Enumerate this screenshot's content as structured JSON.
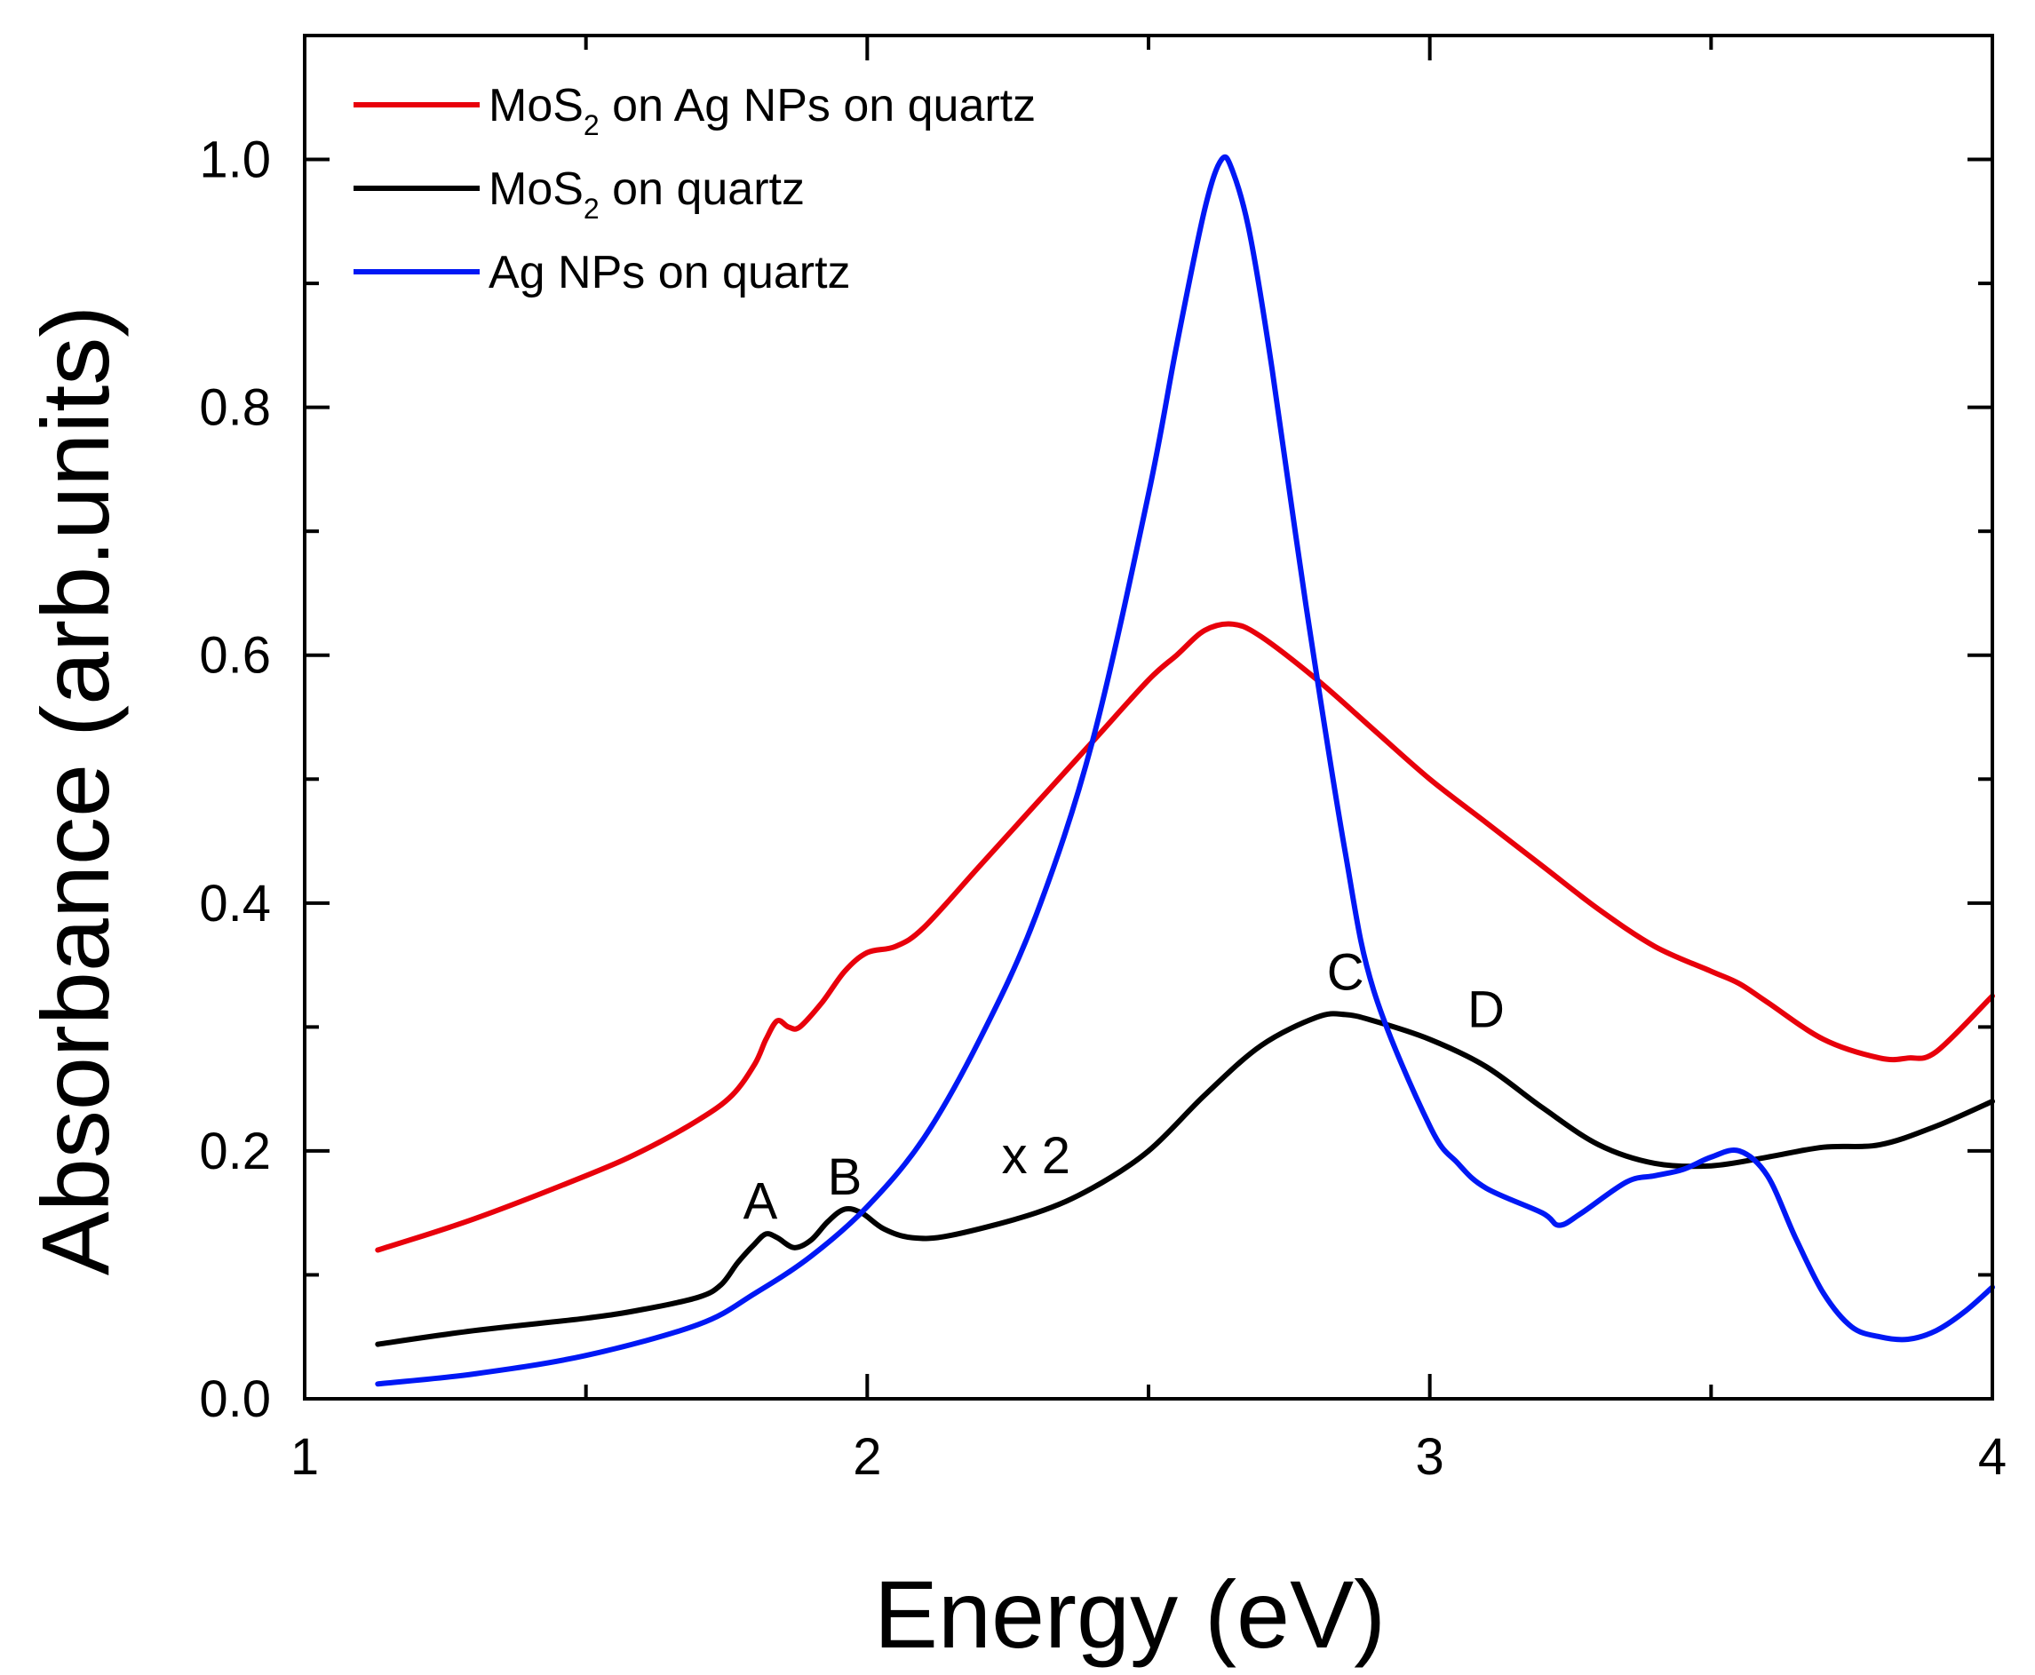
{
  "chart_data": {
    "type": "line",
    "xlabel": "Energy (eV)",
    "ylabel": "Absorbance (arb.units)",
    "xlim": [
      1,
      4
    ],
    "ylim": [
      0,
      1.1
    ],
    "x_ticks": [
      1,
      2,
      3,
      4
    ],
    "x_tick_labels": [
      "1",
      "2",
      "3",
      "4"
    ],
    "y_ticks": [
      0.0,
      0.2,
      0.4,
      0.6,
      0.8,
      1.0
    ],
    "y_tick_labels": [
      "0.0",
      "0.2",
      "0.4",
      "0.6",
      "0.8",
      "1.0"
    ],
    "legend_position": "top-left",
    "series": [
      {
        "name": "MoS2 on Ag NPs on quartz",
        "legend_main": "MoS",
        "legend_sub": "2",
        "legend_rest": " on Ag NPs on quartz",
        "color": "#e8000b",
        "x": [
          1.13,
          1.3,
          1.5,
          1.6,
          1.7,
          1.76,
          1.8,
          1.82,
          1.84,
          1.86,
          1.88,
          1.92,
          1.96,
          2.0,
          2.05,
          2.1,
          2.2,
          2.3,
          2.4,
          2.5,
          2.55,
          2.6,
          2.65,
          2.7,
          2.8,
          2.9,
          3.0,
          3.1,
          3.2,
          3.3,
          3.4,
          3.5,
          3.55,
          3.6,
          3.7,
          3.8,
          3.85,
          3.9,
          4.0
        ],
        "y": [
          0.12,
          0.145,
          0.18,
          0.2,
          0.225,
          0.245,
          0.27,
          0.29,
          0.305,
          0.3,
          0.3,
          0.32,
          0.345,
          0.36,
          0.365,
          0.38,
          0.43,
          0.48,
          0.53,
          0.58,
          0.6,
          0.62,
          0.625,
          0.615,
          0.58,
          0.54,
          0.5,
          0.465,
          0.43,
          0.395,
          0.365,
          0.345,
          0.335,
          0.32,
          0.29,
          0.275,
          0.275,
          0.28,
          0.325
        ]
      },
      {
        "name": "MoS2 on quartz",
        "legend_main": "MoS",
        "legend_sub": "2",
        "legend_rest": " on quartz",
        "color": "#000000",
        "x": [
          1.13,
          1.3,
          1.5,
          1.6,
          1.7,
          1.74,
          1.77,
          1.8,
          1.82,
          1.84,
          1.87,
          1.9,
          1.93,
          1.96,
          1.99,
          2.03,
          2.08,
          2.15,
          2.3,
          2.4,
          2.5,
          2.6,
          2.7,
          2.8,
          2.85,
          2.9,
          3.0,
          3.1,
          3.2,
          3.3,
          3.4,
          3.5,
          3.6,
          3.7,
          3.8,
          3.9,
          4.0
        ],
        "y": [
          0.044,
          0.055,
          0.065,
          0.072,
          0.082,
          0.092,
          0.11,
          0.125,
          0.133,
          0.13,
          0.122,
          0.128,
          0.143,
          0.153,
          0.15,
          0.137,
          0.13,
          0.132,
          0.15,
          0.17,
          0.2,
          0.245,
          0.285,
          0.308,
          0.31,
          0.305,
          0.29,
          0.268,
          0.235,
          0.205,
          0.19,
          0.188,
          0.195,
          0.203,
          0.205,
          0.22,
          0.24
        ]
      },
      {
        "name": "Ag NPs on quartz",
        "legend_main": "Ag NPs on quartz",
        "legend_sub": "",
        "legend_rest": "",
        "color": "#0018f5",
        "x": [
          1.13,
          1.3,
          1.5,
          1.7,
          1.8,
          1.9,
          2.0,
          2.1,
          2.2,
          2.3,
          2.4,
          2.5,
          2.55,
          2.6,
          2.63,
          2.65,
          2.68,
          2.72,
          2.78,
          2.85,
          2.9,
          3.0,
          3.05,
          3.1,
          3.2,
          3.23,
          3.27,
          3.35,
          3.4,
          3.45,
          3.5,
          3.55,
          3.6,
          3.65,
          3.7,
          3.75,
          3.8,
          3.85,
          3.9,
          3.95,
          4.0
        ],
        "y": [
          0.012,
          0.02,
          0.035,
          0.06,
          0.085,
          0.115,
          0.155,
          0.21,
          0.29,
          0.39,
          0.53,
          0.73,
          0.85,
          0.96,
          1.0,
          0.99,
          0.94,
          0.83,
          0.64,
          0.44,
          0.33,
          0.22,
          0.19,
          0.17,
          0.15,
          0.14,
          0.15,
          0.175,
          0.18,
          0.185,
          0.195,
          0.2,
          0.18,
          0.13,
          0.085,
          0.058,
          0.05,
          0.048,
          0.055,
          0.07,
          0.09
        ]
      }
    ],
    "annotations": [
      {
        "text": "A",
        "x": 1.81,
        "y": 0.145
      },
      {
        "text": "B",
        "x": 1.96,
        "y": 0.165
      },
      {
        "text": "x 2",
        "x": 2.3,
        "y": 0.182
      },
      {
        "text": "C",
        "x": 2.85,
        "y": 0.33
      },
      {
        "text": "D",
        "x": 3.1,
        "y": 0.3
      }
    ]
  }
}
